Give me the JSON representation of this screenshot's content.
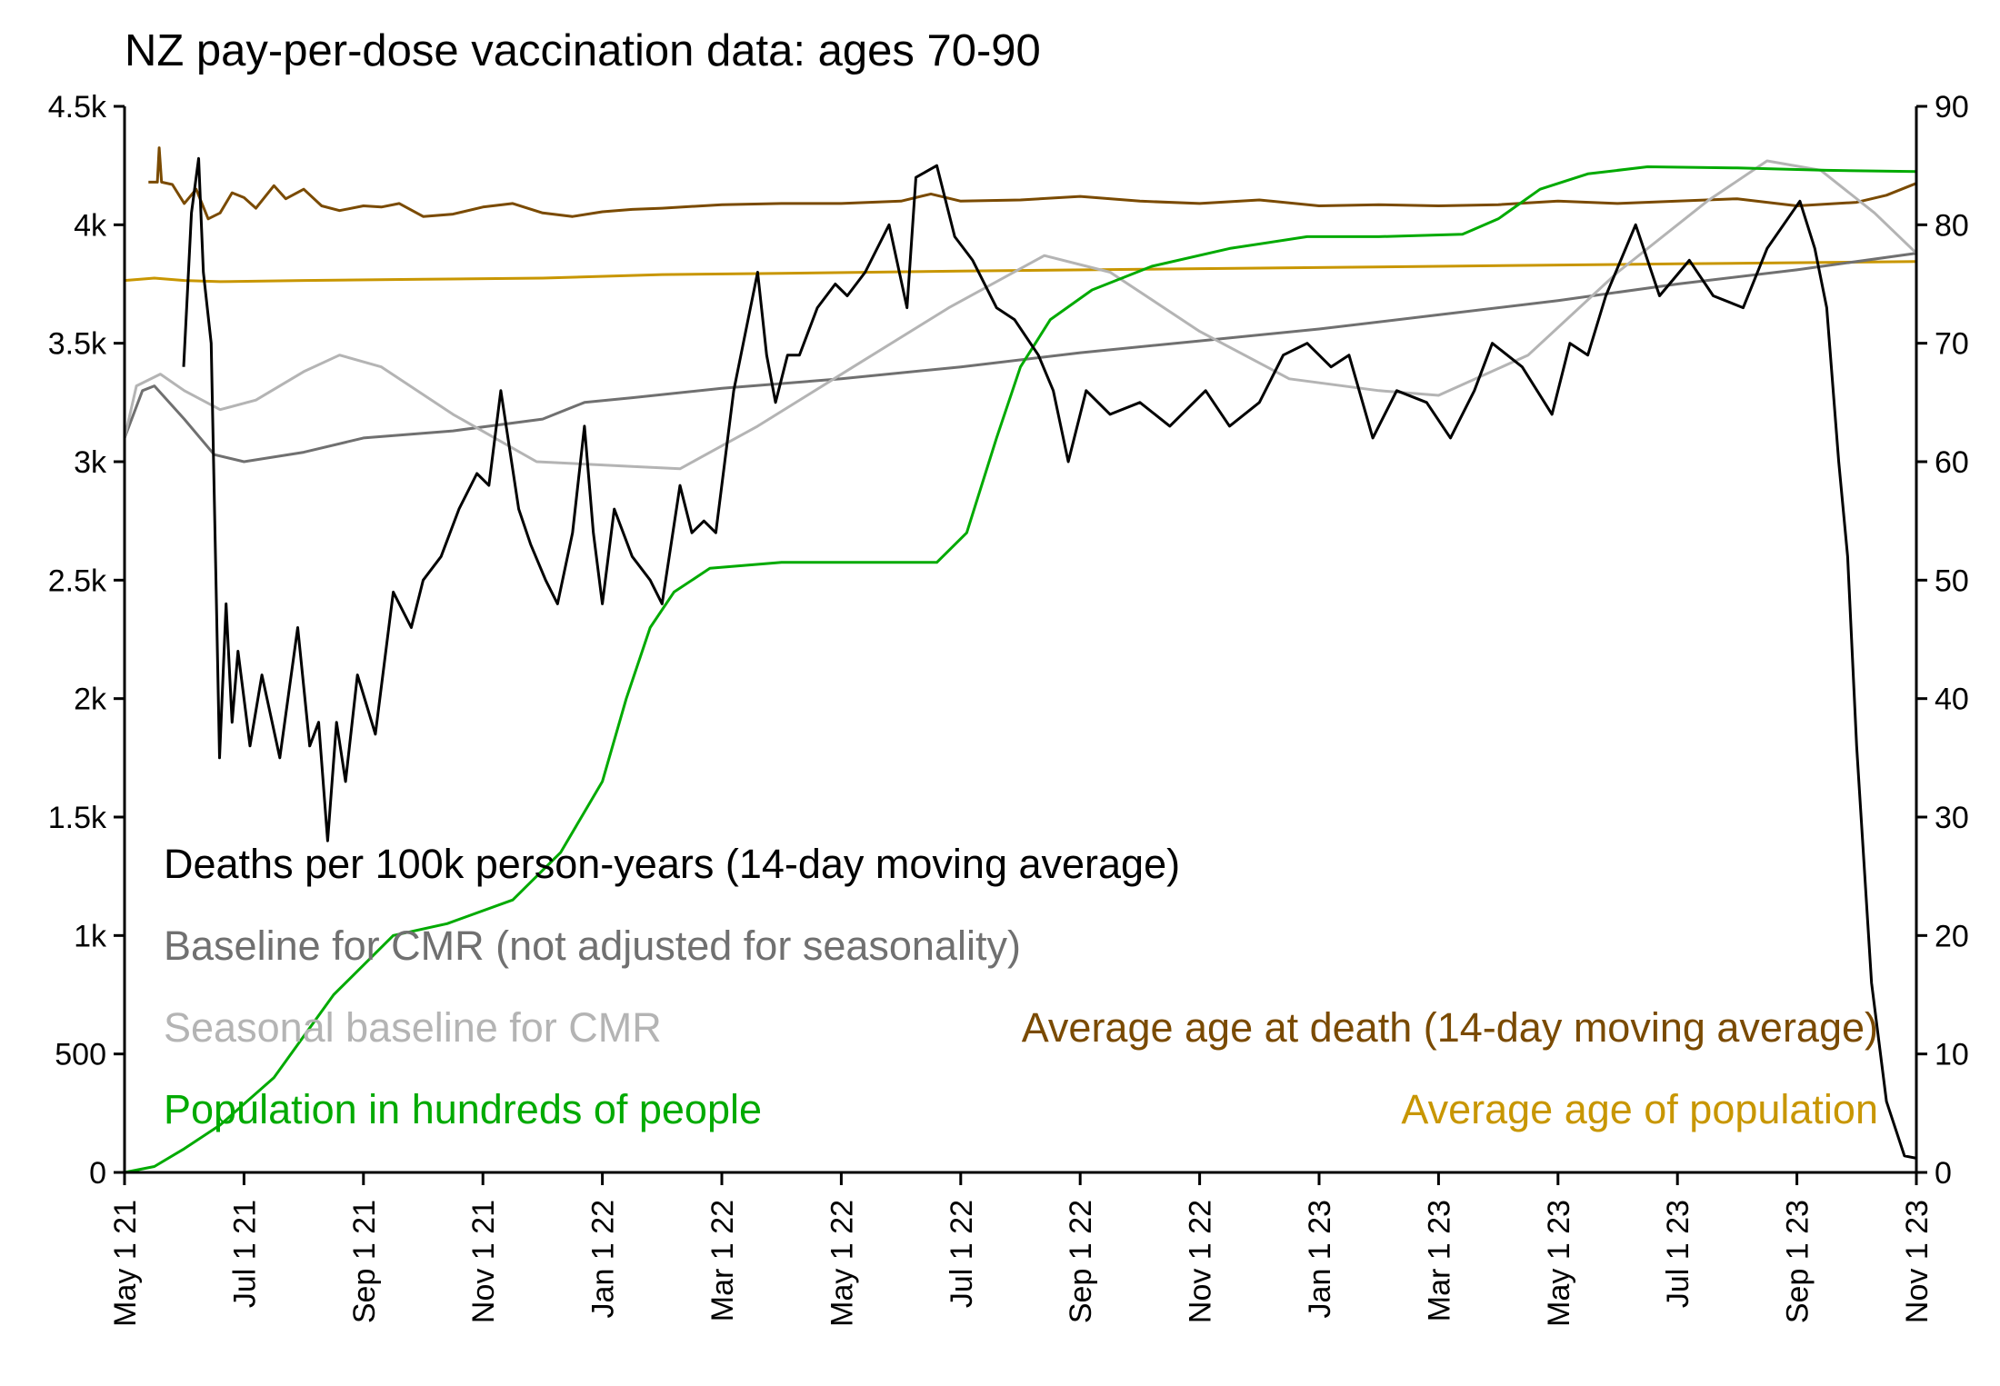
{
  "chart_data": {
    "type": "line",
    "title": "NZ pay-per-dose vaccination data: ages 70-90",
    "x_unit": "months since May 1 2021",
    "xlim": [
      0,
      30
    ],
    "x_ticks": [
      {
        "m": 0,
        "label": "May 1 21"
      },
      {
        "m": 2,
        "label": "Jul 1 21"
      },
      {
        "m": 4,
        "label": "Sep 1 21"
      },
      {
        "m": 6,
        "label": "Nov 1 21"
      },
      {
        "m": 8,
        "label": "Jan 1 22"
      },
      {
        "m": 10,
        "label": "Mar 1 22"
      },
      {
        "m": 12,
        "label": "May 1 22"
      },
      {
        "m": 14,
        "label": "Jul 1 22"
      },
      {
        "m": 16,
        "label": "Sep 1 22"
      },
      {
        "m": 18,
        "label": "Nov 1 22"
      },
      {
        "m": 20,
        "label": "Jan 1 23"
      },
      {
        "m": 22,
        "label": "Mar 1 23"
      },
      {
        "m": 24,
        "label": "May 1 23"
      },
      {
        "m": 26,
        "label": "Jul 1 23"
      },
      {
        "m": 28,
        "label": "Sep 1 23"
      },
      {
        "m": 30,
        "label": "Nov 1 23"
      }
    ],
    "left_axis": {
      "ylim": [
        0,
        4500
      ],
      "ticks": [
        {
          "v": 0,
          "label": "0"
        },
        {
          "v": 500,
          "label": "500"
        },
        {
          "v": 1000,
          "label": "1k"
        },
        {
          "v": 1500,
          "label": "1.5k"
        },
        {
          "v": 2000,
          "label": "2k"
        },
        {
          "v": 2500,
          "label": "2.5k"
        },
        {
          "v": 3000,
          "label": "3k"
        },
        {
          "v": 3500,
          "label": "3.5k"
        },
        {
          "v": 4000,
          "label": "4k"
        },
        {
          "v": 4500,
          "label": "4.5k"
        }
      ]
    },
    "right_axis": {
      "ylim": [
        0,
        90
      ],
      "ticks": [
        {
          "v": 0,
          "label": "0"
        },
        {
          "v": 10,
          "label": "10"
        },
        {
          "v": 20,
          "label": "20"
        },
        {
          "v": 30,
          "label": "30"
        },
        {
          "v": 40,
          "label": "40"
        },
        {
          "v": 50,
          "label": "50"
        },
        {
          "v": 60,
          "label": "60"
        },
        {
          "v": 70,
          "label": "70"
        },
        {
          "v": 80,
          "label": "80"
        },
        {
          "v": 90,
          "label": "90"
        }
      ]
    },
    "series": [
      {
        "name": "Deaths per 100k person-years (14-day moving average)",
        "axis": "left",
        "color": "#000000",
        "x": [
          0.99,
          1.05,
          1.12,
          1.24,
          1.32,
          1.45,
          1.59,
          1.7,
          1.8,
          1.9,
          2.1,
          2.3,
          2.6,
          2.9,
          3.1,
          3.25,
          3.4,
          3.55,
          3.7,
          3.9,
          4.2,
          4.5,
          4.8,
          5.0,
          5.3,
          5.6,
          5.9,
          6.1,
          6.3,
          6.6,
          6.8,
          7.05,
          7.25,
          7.5,
          7.7,
          7.85,
          8.0,
          8.2,
          8.5,
          8.8,
          9.0,
          9.3,
          9.5,
          9.7,
          9.9,
          10.2,
          10.6,
          10.75,
          10.9,
          11.1,
          11.3,
          11.6,
          11.9,
          12.1,
          12.4,
          12.8,
          13.1,
          13.25,
          13.6,
          13.9,
          14.2,
          14.6,
          14.9,
          15.3,
          15.55,
          15.8,
          16.1,
          16.5,
          17.0,
          17.5,
          18.1,
          18.5,
          19.0,
          19.4,
          19.8,
          20.2,
          20.5,
          20.9,
          21.3,
          21.8,
          22.2,
          22.6,
          22.9,
          23.4,
          23.9,
          24.2,
          24.5,
          24.8,
          25.3,
          25.7,
          26.2,
          26.6,
          27.1,
          27.5,
          28.05,
          28.3,
          28.5,
          28.7,
          28.85,
          29.0,
          29.25,
          29.5,
          29.8,
          30.0
        ],
        "y": [
          3400,
          3700,
          4050,
          4280,
          3800,
          3500,
          1750,
          2400,
          1900,
          2200,
          1800,
          2100,
          1750,
          2300,
          1800,
          1900,
          1400,
          1900,
          1650,
          2100,
          1850,
          2450,
          2300,
          2500,
          2600,
          2800,
          2950,
          2900,
          3300,
          2800,
          2650,
          2500,
          2400,
          2700,
          3150,
          2700,
          2400,
          2800,
          2600,
          2500,
          2400,
          2900,
          2700,
          2750,
          2700,
          3300,
          3800,
          3450,
          3250,
          3450,
          3450,
          3650,
          3750,
          3700,
          3800,
          4000,
          3650,
          4200,
          4250,
          3950,
          3850,
          3650,
          3600,
          3450,
          3300,
          3000,
          3300,
          3200,
          3250,
          3150,
          3300,
          3150,
          3250,
          3450,
          3500,
          3400,
          3450,
          3100,
          3300,
          3250,
          3100,
          3300,
          3500,
          3400,
          3200,
          3500,
          3450,
          3700,
          4000,
          3700,
          3850,
          3700,
          3650,
          3900,
          4100,
          3900,
          3650,
          3000,
          2600,
          1800,
          800,
          300,
          70,
          60
        ]
      },
      {
        "name": "Baseline for CMR (not adjusted for seasonality)",
        "axis": "left",
        "color": "#707070",
        "x": [
          0,
          0.3,
          0.5,
          1.0,
          1.5,
          2.0,
          3.0,
          4.0,
          5.5,
          7.0,
          7.7,
          8.5,
          10.0,
          12.0,
          14.0,
          16.0,
          18.0,
          20.0,
          22.0,
          24.0,
          26.0,
          28.0,
          30.0
        ],
        "y": [
          3100,
          3300,
          3320,
          3180,
          3030,
          3000,
          3040,
          3100,
          3130,
          3180,
          3250,
          3270,
          3310,
          3350,
          3400,
          3460,
          3510,
          3560,
          3620,
          3680,
          3750,
          3810,
          3880
        ]
      },
      {
        "name": "Seasonal baseline for CMR",
        "axis": "left",
        "color": "#b4b4b4",
        "x": [
          0,
          0.2,
          0.6,
          1.0,
          1.6,
          2.2,
          3.0,
          3.6,
          4.3,
          5.5,
          6.9,
          8.5,
          9.3,
          10.6,
          12.2,
          13.8,
          15.4,
          16.5,
          18.0,
          19.5,
          21.0,
          22.0,
          23.5,
          25.0,
          26.5,
          27.5,
          28.4,
          29.3,
          30.0
        ],
        "y": [
          3100,
          3320,
          3370,
          3300,
          3220,
          3260,
          3380,
          3450,
          3400,
          3200,
          3000,
          2980,
          2970,
          3150,
          3400,
          3650,
          3870,
          3800,
          3550,
          3350,
          3300,
          3280,
          3450,
          3800,
          4100,
          4270,
          4230,
          4050,
          3880
        ]
      },
      {
        "name": "Population in hundreds of people",
        "axis": "right",
        "color": "#00aa00",
        "x": [
          0,
          0.5,
          1.0,
          1.6,
          2.5,
          3.5,
          4.5,
          5.4,
          6.5,
          7.3,
          8.0,
          8.4,
          8.8,
          9.2,
          9.8,
          11.0,
          12.5,
          13.6,
          14.1,
          14.6,
          15.0,
          15.5,
          16.2,
          17.2,
          18.5,
          19.8,
          21.0,
          22.4,
          23.0,
          23.7,
          24.5,
          25.5,
          27.0,
          28.5,
          30.0
        ],
        "y": [
          0,
          0.5,
          2,
          4,
          8,
          15,
          20,
          21,
          23,
          27,
          33,
          40,
          46,
          49,
          51,
          51.5,
          51.5,
          51.5,
          54,
          62,
          68,
          72,
          74.5,
          76.5,
          78,
          79,
          79,
          79.2,
          80.5,
          83,
          84.3,
          84.9,
          84.8,
          84.6,
          84.5
        ]
      },
      {
        "name": "Average age of population",
        "axis": "right",
        "color": "#c89600",
        "x": [
          0,
          0.5,
          1.0,
          1.6,
          3.0,
          5.0,
          7.0,
          9.0,
          11.0,
          14.0,
          18.0,
          22.0,
          26.0,
          30.0
        ],
        "y": [
          75.3,
          75.5,
          75.3,
          75.2,
          75.3,
          75.4,
          75.5,
          75.8,
          75.9,
          76.1,
          76.3,
          76.5,
          76.7,
          76.9
        ]
      },
      {
        "name": "Average age at death (14-day moving average)",
        "axis": "right",
        "color": "#7a4a00",
        "x": [
          0.4,
          0.55,
          0.58,
          0.62,
          0.8,
          1.0,
          1.2,
          1.4,
          1.6,
          1.8,
          2.0,
          2.2,
          2.5,
          2.7,
          3.0,
          3.3,
          3.6,
          4.0,
          4.3,
          4.6,
          5.0,
          5.5,
          6.0,
          6.5,
          7.0,
          7.5,
          8.0,
          8.5,
          9.0,
          10.0,
          11.0,
          12.0,
          13.0,
          13.5,
          14.0,
          15.0,
          16.0,
          17.0,
          18.0,
          19.0,
          20.0,
          21.0,
          22.0,
          23.0,
          24.0,
          25.0,
          26.0,
          27.0,
          28.0,
          29.0,
          29.5,
          30.0
        ],
        "y": [
          83.6,
          83.6,
          86.5,
          83.6,
          83.4,
          81.8,
          83.0,
          80.5,
          81.0,
          82.7,
          82.3,
          81.4,
          83.3,
          82.2,
          83.0,
          81.6,
          81.2,
          81.6,
          81.5,
          81.8,
          80.7,
          80.9,
          81.5,
          81.8,
          81.0,
          80.7,
          81.1,
          81.3,
          81.4,
          81.7,
          81.8,
          81.8,
          82.0,
          82.6,
          82.0,
          82.1,
          82.4,
          82.0,
          81.8,
          82.1,
          81.6,
          81.7,
          81.6,
          81.7,
          82.0,
          81.8,
          82.0,
          82.2,
          81.6,
          81.9,
          82.5,
          83.5
        ]
      }
    ],
    "legend_labels": [
      "Deaths per 100k person-years (14-day moving average)",
      "Baseline for CMR (not adjusted for seasonality)",
      "Seasonal baseline for CMR",
      "Population in hundreds of people",
      "Average age at death (14-day moving average)",
      "Average age of population"
    ],
    "grid": false
  }
}
